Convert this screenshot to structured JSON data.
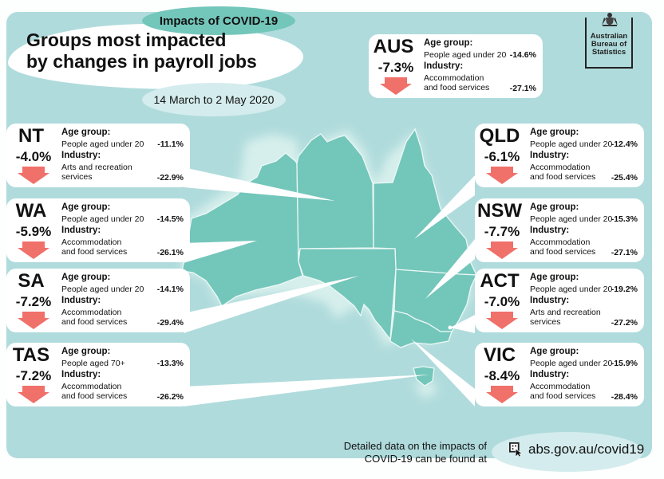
{
  "header": {
    "tag": "Impacts of COVID-19",
    "title_line1": "Groups most impacted",
    "title_line2": "by changes in payroll jobs",
    "date_range": "14 March to 2 May 2020"
  },
  "logo": {
    "line1": "Australian",
    "line2": "Bureau of",
    "line3": "Statistics",
    "icon": "coat-of-arms-icon"
  },
  "labels": {
    "age_group": "Age group:",
    "industry": "Industry:"
  },
  "colors": {
    "panel": "#b0dbdc",
    "map": "#73c6ba",
    "arrow": "#f0706a",
    "card": "#ffffff"
  },
  "regions": [
    {
      "state": "AUS",
      "change": "-7.3%",
      "age_desc": "People aged under 20",
      "age_val": "-14.6%",
      "ind_line1": "Accommodation",
      "ind_line2": "and food services",
      "ind_val": "-27.1%"
    },
    {
      "state": "NT",
      "change": "-4.0%",
      "age_desc": "People aged under 20",
      "age_val": "-11.1%",
      "ind_line1": "Arts and recreation",
      "ind_line2": "services",
      "ind_val": "-22.9%"
    },
    {
      "state": "WA",
      "change": "-5.9%",
      "age_desc": "People aged under 20",
      "age_val": "-14.5%",
      "ind_line1": "Accommodation",
      "ind_line2": "and food services",
      "ind_val": "-26.1%"
    },
    {
      "state": "SA",
      "change": "-7.2%",
      "age_desc": "People aged under 20",
      "age_val": "-14.1%",
      "ind_line1": "Accommodation",
      "ind_line2": "and food services",
      "ind_val": "-29.4%"
    },
    {
      "state": "TAS",
      "change": "-7.2%",
      "age_desc": "People aged 70+",
      "age_val": "-13.3%",
      "ind_line1": "Accommodation",
      "ind_line2": "and food services",
      "ind_val": "-26.2%"
    },
    {
      "state": "QLD",
      "change": "-6.1%",
      "age_desc": "People aged under 20",
      "age_val": "-12.4%",
      "ind_line1": "Accommodation",
      "ind_line2": "and food services",
      "ind_val": "-25.4%"
    },
    {
      "state": "NSW",
      "change": "-7.7%",
      "age_desc": "People aged under 20",
      "age_val": "-15.3%",
      "ind_line1": "Accommodation",
      "ind_line2": "and food services",
      "ind_val": "-27.1%"
    },
    {
      "state": "ACT",
      "change": "-7.0%",
      "age_desc": "People aged under 20",
      "age_val": "-19.2%",
      "ind_line1": "Arts and recreation",
      "ind_line2": "services",
      "ind_val": "-27.2%"
    },
    {
      "state": "VIC",
      "change": "-8.4%",
      "age_desc": "People aged under 20",
      "age_val": "-15.9%",
      "ind_line1": "Accommodation",
      "ind_line2": "and food services",
      "ind_val": "-28.4%"
    }
  ],
  "footer": {
    "line1": "Detailed data on the impacts of",
    "line2": "COVID-19 can be found at",
    "url": "abs.gov.au/covid19"
  }
}
